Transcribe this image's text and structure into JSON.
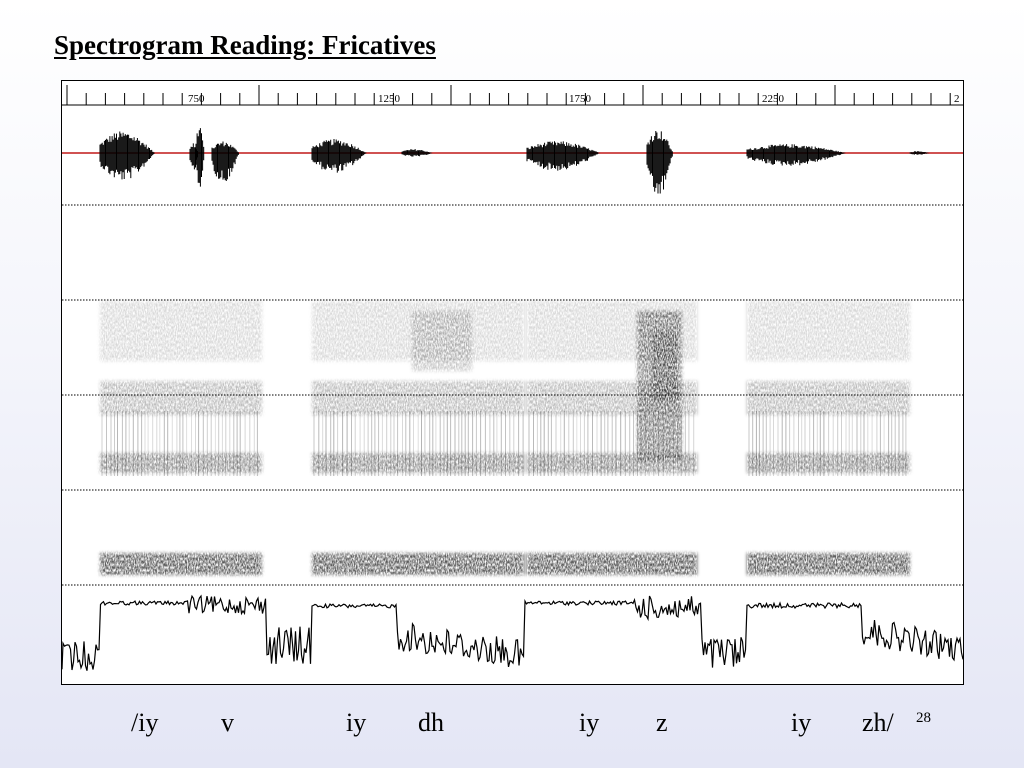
{
  "slide": {
    "title": "Spectrogram Reading: Fricatives",
    "page_number": "28"
  },
  "ruler": {
    "labels": [
      "750",
      "1250",
      "1750",
      "2250",
      "2"
    ]
  },
  "phonemes": [
    {
      "text": "/iy"
    },
    {
      "text": "v"
    },
    {
      "text": "iy"
    },
    {
      "text": "dh"
    },
    {
      "text": "iy"
    },
    {
      "text": "z"
    },
    {
      "text": "iy"
    },
    {
      "text": "zh/"
    }
  ],
  "colors": {
    "waveform_baseline": "#c01818",
    "trace": "#000000",
    "grid": "#000000"
  }
}
